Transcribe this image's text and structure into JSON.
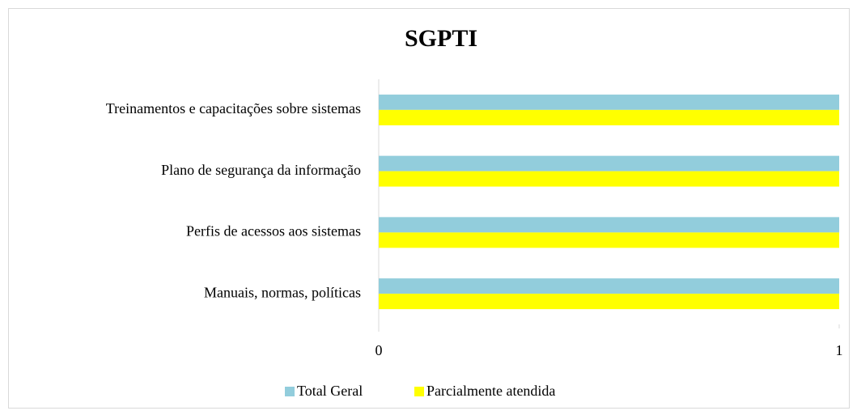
{
  "chart_data": {
    "type": "hbar",
    "title": "SGPTI",
    "categories": [
      "Manuais, normas, políticas",
      "Perfis de acessos aos sistemas",
      "Plano de segurança da informação",
      "Treinamentos e capacitações sobre sistemas"
    ],
    "series": [
      {
        "name": "Total Geral",
        "color": "#92cddc",
        "values": [
          1,
          1,
          1,
          1
        ]
      },
      {
        "name": "Parcialmente atendida",
        "color": "#ffff00",
        "values": [
          1,
          1,
          1,
          1
        ]
      }
    ],
    "xlim": [
      0,
      1
    ],
    "xticks": [
      0,
      1
    ],
    "legend": "bottom"
  }
}
